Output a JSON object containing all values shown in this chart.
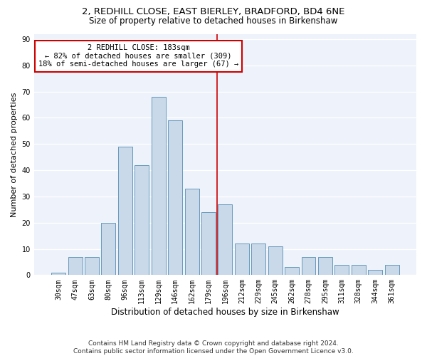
{
  "title1": "2, REDHILL CLOSE, EAST BIERLEY, BRADFORD, BD4 6NE",
  "title2": "Size of property relative to detached houses in Birkenshaw",
  "xlabel": "Distribution of detached houses by size in Birkenshaw",
  "ylabel": "Number of detached properties",
  "categories": [
    "30sqm",
    "47sqm",
    "63sqm",
    "80sqm",
    "96sqm",
    "113sqm",
    "129sqm",
    "146sqm",
    "162sqm",
    "179sqm",
    "196sqm",
    "212sqm",
    "229sqm",
    "245sqm",
    "262sqm",
    "278sqm",
    "295sqm",
    "311sqm",
    "328sqm",
    "344sqm",
    "361sqm"
  ],
  "values": [
    1,
    7,
    7,
    20,
    49,
    42,
    68,
    59,
    33,
    24,
    27,
    12,
    12,
    11,
    3,
    7,
    7,
    4,
    4,
    2,
    4
  ],
  "bar_color": "#c9d9ea",
  "bar_edge_color": "#6699bb",
  "vline_color": "#cc0000",
  "annotation_text": "2 REDHILL CLOSE: 183sqm\n← 82% of detached houses are smaller (309)\n18% of semi-detached houses are larger (67) →",
  "annotation_box_color": "#ffffff",
  "annotation_box_edge": "#cc0000",
  "ylim": [
    0,
    92
  ],
  "yticks": [
    0,
    10,
    20,
    30,
    40,
    50,
    60,
    70,
    80,
    90
  ],
  "background_color": "#edf2fb",
  "grid_color": "#ffffff",
  "footnote": "Contains HM Land Registry data © Crown copyright and database right 2024.\nContains public sector information licensed under the Open Government Licence v3.0.",
  "title1_fontsize": 9.5,
  "title2_fontsize": 8.5,
  "xlabel_fontsize": 8.5,
  "ylabel_fontsize": 8,
  "tick_fontsize": 7,
  "annotation_fontsize": 7.5,
  "footnote_fontsize": 6.5
}
